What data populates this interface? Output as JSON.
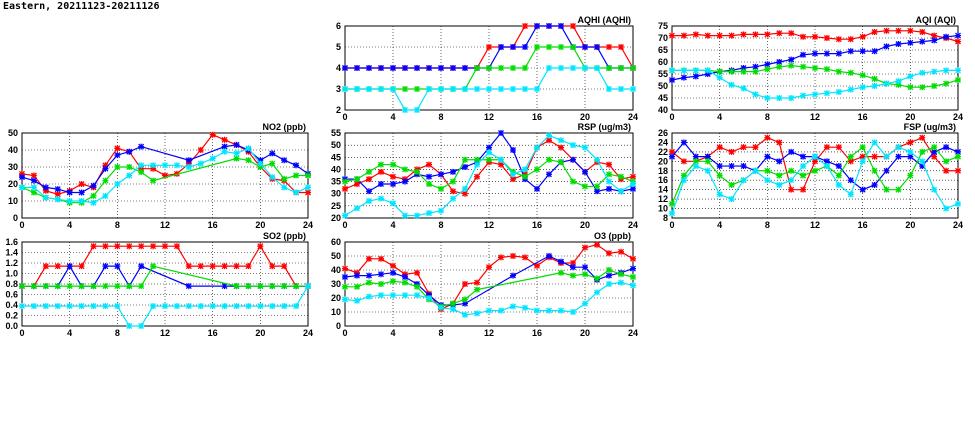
{
  "title": "Eastern, 20211123-20211126",
  "series_colors": [
    "#ff0000",
    "#0000ff",
    "#00dd00",
    "#00e5ff"
  ],
  "chart_data": [
    {
      "type": "line",
      "title": "AQHI (AQHI)",
      "ylim": [
        2,
        6
      ],
      "yticks": [
        2,
        3,
        4,
        5,
        6
      ],
      "xlim": [
        0,
        24
      ],
      "xticks": [
        0,
        4,
        8,
        12,
        16,
        20,
        24
      ],
      "grid": true,
      "series": [
        {
          "name": "red",
          "values": [
            4,
            4,
            4,
            4,
            4,
            4,
            4,
            4,
            4,
            4,
            4,
            4,
            5,
            5,
            5,
            6,
            6,
            6,
            6,
            6,
            5,
            5,
            5,
            5,
            4
          ]
        },
        {
          "name": "blue",
          "values": [
            4,
            4,
            4,
            4,
            4,
            4,
            4,
            4,
            4,
            4,
            4,
            4,
            4,
            5,
            5,
            5,
            6,
            6,
            6,
            5,
            5,
            5,
            4,
            4,
            4
          ]
        },
        {
          "name": "green",
          "values": [
            3,
            3,
            3,
            3,
            3,
            3,
            3,
            3,
            3,
            3,
            3,
            4,
            4,
            4,
            4,
            4,
            5,
            5,
            5,
            5,
            4,
            4,
            4,
            4,
            4
          ]
        },
        {
          "name": "cyan",
          "values": [
            3,
            3,
            3,
            3,
            3,
            2,
            2,
            3,
            3,
            3,
            3,
            3,
            3,
            3,
            3,
            3,
            3,
            4,
            4,
            4,
            4,
            4,
            3,
            3,
            3
          ]
        }
      ]
    },
    {
      "type": "line",
      "title": "AQI (AQI)",
      "ylim": [
        40,
        75
      ],
      "yticks": [
        40,
        45,
        50,
        55,
        60,
        65,
        70,
        75
      ],
      "xlim": [
        0,
        24
      ],
      "xticks": [
        0,
        4,
        8,
        12,
        16,
        20,
        24
      ],
      "grid": true,
      "series": [
        {
          "name": "red",
          "values": [
            71,
            71,
            71.5,
            71,
            71,
            71,
            71.5,
            71.5,
            71.5,
            72,
            72,
            70.5,
            70.5,
            70,
            69.5,
            69.5,
            70.5,
            72.5,
            73,
            73,
            73,
            72.5,
            71,
            70,
            68.5
          ]
        },
        {
          "name": "blue",
          "values": [
            52.5,
            53.5,
            54,
            55,
            56,
            56.5,
            57.5,
            58,
            59,
            60,
            61,
            63,
            63.5,
            63.5,
            63.5,
            64.5,
            64.5,
            64.5,
            66.5,
            67.5,
            68,
            68.5,
            69,
            70.5,
            71
          ]
        },
        {
          "name": "green",
          "values": [
            56.5,
            56.5,
            56.5,
            56.5,
            56,
            56,
            56,
            56,
            57,
            58,
            58.5,
            58,
            57.5,
            57,
            56,
            55.5,
            54.5,
            53,
            51,
            50.5,
            49.5,
            49.5,
            50,
            51,
            52.5
          ]
        },
        {
          "name": "cyan",
          "values": [
            56.5,
            56.5,
            56.5,
            56.5,
            53.5,
            50.5,
            49,
            46.5,
            45,
            45,
            45,
            46,
            46.5,
            47,
            47.5,
            48.5,
            49.5,
            50,
            51,
            52,
            54,
            55.5,
            56,
            56.5,
            56.5
          ]
        }
      ]
    },
    {
      "type": "line",
      "title": "NO2 (ppb)",
      "ylim": [
        0,
        50
      ],
      "yticks": [
        0,
        10,
        20,
        30,
        40,
        50
      ],
      "xlim": [
        0,
        24
      ],
      "xticks": [
        0,
        4,
        8,
        12,
        16,
        20,
        24
      ],
      "grid": true,
      "series": [
        {
          "name": "red",
          "values": [
            26,
            25,
            16,
            14,
            16,
            20,
            18,
            31,
            41,
            39,
            29,
            29,
            25,
            26,
            32,
            40,
            49,
            46,
            43,
            39,
            30,
            23,
            22,
            15,
            15
          ]
        },
        {
          "name": "blue",
          "values": [
            24,
            22,
            18,
            17,
            15,
            15,
            19,
            29,
            37,
            39,
            42,
            null,
            null,
            null,
            34,
            null,
            null,
            42,
            43,
            40,
            34,
            38,
            34,
            31,
            26
          ]
        },
        {
          "name": "green",
          "values": [
            18,
            15,
            12,
            11,
            9,
            9,
            13,
            22,
            30,
            30,
            27,
            22,
            null,
            null,
            null,
            null,
            null,
            null,
            35,
            34,
            30,
            32,
            23,
            25,
            25
          ]
        },
        {
          "name": "cyan",
          "values": [
            18,
            18,
            12,
            11,
            10,
            10,
            9,
            13,
            20,
            25,
            31,
            31,
            31,
            31,
            30,
            32,
            35,
            39,
            38,
            41,
            32,
            24,
            18,
            15,
            18
          ]
        }
      ]
    },
    {
      "type": "line",
      "title": "RSP (ug/m3)",
      "ylim": [
        20,
        55
      ],
      "yticks": [
        20,
        25,
        30,
        35,
        40,
        45,
        50,
        55
      ],
      "xlim": [
        0,
        24
      ],
      "xticks": [
        0,
        4,
        8,
        12,
        16,
        20,
        24
      ],
      "grid": true,
      "series": [
        {
          "name": "red",
          "values": [
            32,
            34,
            36,
            39,
            37,
            36,
            40,
            42,
            38,
            31,
            30,
            37,
            43,
            42,
            36,
            38,
            49,
            52,
            49,
            44,
            39,
            43,
            42,
            36,
            37
          ]
        },
        {
          "name": "blue",
          "values": [
            36,
            36,
            31,
            34,
            34,
            35,
            38,
            37,
            38,
            39,
            41,
            43,
            49,
            55,
            48,
            36,
            32,
            38,
            43,
            44,
            39,
            31,
            32,
            31,
            32
          ]
        },
        {
          "name": "green",
          "values": [
            35,
            36,
            39,
            42,
            42,
            40,
            39,
            34,
            32,
            35,
            44,
            44,
            44,
            44,
            39,
            37,
            40,
            44,
            43,
            35,
            33,
            33,
            38,
            37,
            35
          ]
        },
        {
          "name": "cyan",
          "values": [
            21,
            24,
            27,
            28,
            26,
            21,
            21,
            22,
            23,
            28,
            32,
            42,
            47,
            44,
            38,
            40,
            49,
            54,
            52,
            50,
            49,
            44,
            35,
            31,
            34
          ]
        }
      ]
    },
    {
      "type": "line",
      "title": "FSP (ug/m3)",
      "ylim": [
        8,
        26
      ],
      "yticks": [
        8,
        10,
        12,
        14,
        16,
        18,
        20,
        22,
        24,
        26
      ],
      "xlim": [
        0,
        24
      ],
      "xticks": [
        0,
        4,
        8,
        12,
        16,
        20,
        24
      ],
      "grid": true,
      "series": [
        {
          "name": "red",
          "values": [
            22,
            20,
            20,
            21,
            23,
            22,
            23,
            23,
            25,
            24,
            14,
            14,
            20,
            23,
            23,
            20,
            21,
            21,
            21,
            23,
            24,
            25,
            21,
            18,
            18
          ]
        },
        {
          "name": "blue",
          "values": [
            21,
            24,
            21,
            21,
            19,
            19,
            19,
            18,
            21,
            20,
            22,
            21,
            21,
            20,
            19,
            16,
            14,
            15,
            18,
            21,
            21,
            19,
            22,
            23,
            22
          ]
        },
        {
          "name": "green",
          "values": [
            11,
            17,
            20,
            20,
            17,
            15,
            16,
            18,
            18,
            17,
            18,
            17,
            18,
            19,
            17,
            21,
            23,
            18,
            14,
            14,
            17,
            22,
            23,
            20,
            21
          ]
        },
        {
          "name": "cyan",
          "values": [
            9,
            16,
            19,
            18,
            13,
            12,
            16,
            18,
            16,
            15,
            16,
            19,
            21,
            19,
            15,
            13,
            20,
            24,
            21,
            23,
            22,
            20,
            14,
            10,
            11
          ]
        }
      ]
    },
    {
      "type": "line",
      "title": "SO2 (ppb)",
      "ylim": [
        0,
        1.6
      ],
      "yticks": [
        "0.0",
        "0.2",
        "0.4",
        "0.6",
        "0.8",
        "1.0",
        "1.2",
        "1.4",
        "1.6"
      ],
      "xlim": [
        0,
        24
      ],
      "xticks": [
        0,
        4,
        8,
        12,
        16,
        20,
        24
      ],
      "grid": true,
      "series": [
        {
          "name": "red",
          "values": [
            0.76,
            0.76,
            1.14,
            1.14,
            1.14,
            1.14,
            1.52,
            1.52,
            1.52,
            1.52,
            1.52,
            1.52,
            1.52,
            1.52,
            1.14,
            1.14,
            1.14,
            1.14,
            1.14,
            1.14,
            1.52,
            1.14,
            1.14,
            0.76,
            0.76
          ]
        },
        {
          "name": "blue",
          "values": [
            0.76,
            0.76,
            0.76,
            0.76,
            1.14,
            0.76,
            0.76,
            1.14,
            1.14,
            0.76,
            1.14,
            null,
            null,
            null,
            0.76,
            null,
            null,
            0.76,
            0.76,
            0.76,
            0.76,
            0.76,
            0.76,
            0.76,
            0.76
          ]
        },
        {
          "name": "green",
          "values": [
            0.76,
            0.76,
            0.76,
            0.76,
            0.76,
            0.76,
            0.76,
            0.76,
            0.76,
            0.76,
            0.76,
            1.14,
            null,
            null,
            null,
            null,
            null,
            null,
            0.76,
            0.76,
            0.76,
            0.76,
            0.76,
            0.76,
            0.76
          ]
        },
        {
          "name": "cyan",
          "values": [
            0.38,
            0.38,
            0.38,
            0.38,
            0.38,
            0.38,
            0.38,
            0.38,
            0.38,
            0,
            0,
            0.38,
            0.38,
            0.38,
            0.38,
            0.38,
            0.38,
            0.38,
            0.38,
            0.38,
            0.38,
            0.38,
            0.38,
            0.38,
            0.76
          ]
        }
      ]
    },
    {
      "type": "line",
      "title": "O3 (ppb)",
      "ylim": [
        0,
        60
      ],
      "yticks": [
        0,
        10,
        20,
        30,
        40,
        50,
        60
      ],
      "xlim": [
        0,
        24
      ],
      "xticks": [
        0,
        4,
        8,
        12,
        16,
        20,
        24
      ],
      "grid": true,
      "series": [
        {
          "name": "red",
          "values": [
            41,
            38,
            48,
            48,
            43,
            37,
            38,
            23,
            12,
            16,
            30,
            31,
            42,
            49,
            50,
            49,
            43,
            49,
            45,
            45,
            56,
            58,
            52,
            53,
            48
          ]
        },
        {
          "name": "blue",
          "values": [
            35,
            36,
            36,
            37,
            38,
            35,
            30,
            22,
            15,
            15,
            16,
            null,
            null,
            null,
            36,
            null,
            null,
            50,
            46,
            42,
            42,
            33,
            36,
            38,
            41
          ]
        },
        {
          "name": "green",
          "values": [
            28,
            28,
            31,
            30,
            32,
            31,
            28,
            19,
            14,
            16,
            19,
            26,
            null,
            null,
            null,
            null,
            null,
            null,
            38,
            36,
            37,
            34,
            40,
            37,
            35
          ]
        },
        {
          "name": "cyan",
          "values": [
            19,
            18,
            21,
            22,
            22,
            22,
            22,
            20,
            13,
            12,
            8,
            9,
            11,
            11,
            14,
            13,
            11,
            11,
            11,
            10,
            16,
            24,
            30,
            31,
            29
          ]
        }
      ]
    }
  ]
}
